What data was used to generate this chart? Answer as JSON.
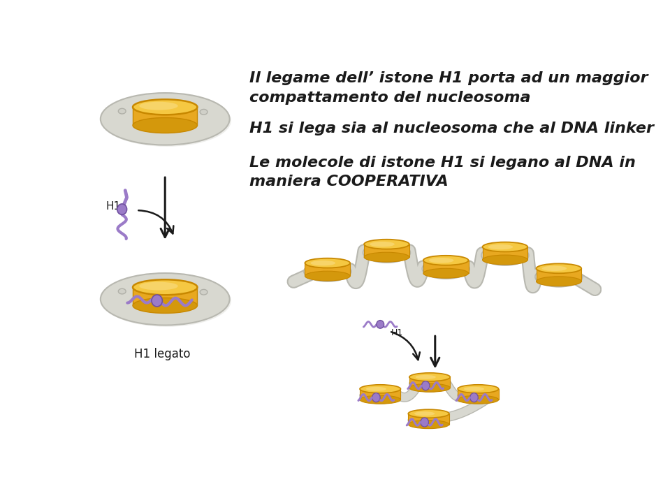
{
  "bg_color": "#ffffff",
  "text_line1": "Il legame dell’ istone H1 porta ad un maggior",
  "text_line2": "compattamento del nucleosoma",
  "text_line3": "H1 si lega sia al nucleosoma che al DNA linker",
  "text_line4": "Le molecole di istone H1 si legano al DNA in",
  "text_line5": "maniera COOPERATIVA",
  "label_h1": "H1",
  "label_h1legato": "H1 legato",
  "nuc_top_color": "#F5C842",
  "nuc_top_light": "#FAE090",
  "nuc_side_color": "#E8A820",
  "nuc_side_light": "#F0C060",
  "nuc_rim_color": "#C88800",
  "nuc_base_color": "#D4980C",
  "dna_color": "#D8D8D0",
  "dna_edge": "#B8B8B0",
  "dna_shadow": "#C0C0B8",
  "h1_purple": "#9B7BC8",
  "h1_purple_dark": "#7050A0",
  "h1_purple_light": "#B89AE0",
  "text_color": "#1a1a1a",
  "arrow_color": "#1a1a1a",
  "font_size_title": 16,
  "font_size_label": 11
}
